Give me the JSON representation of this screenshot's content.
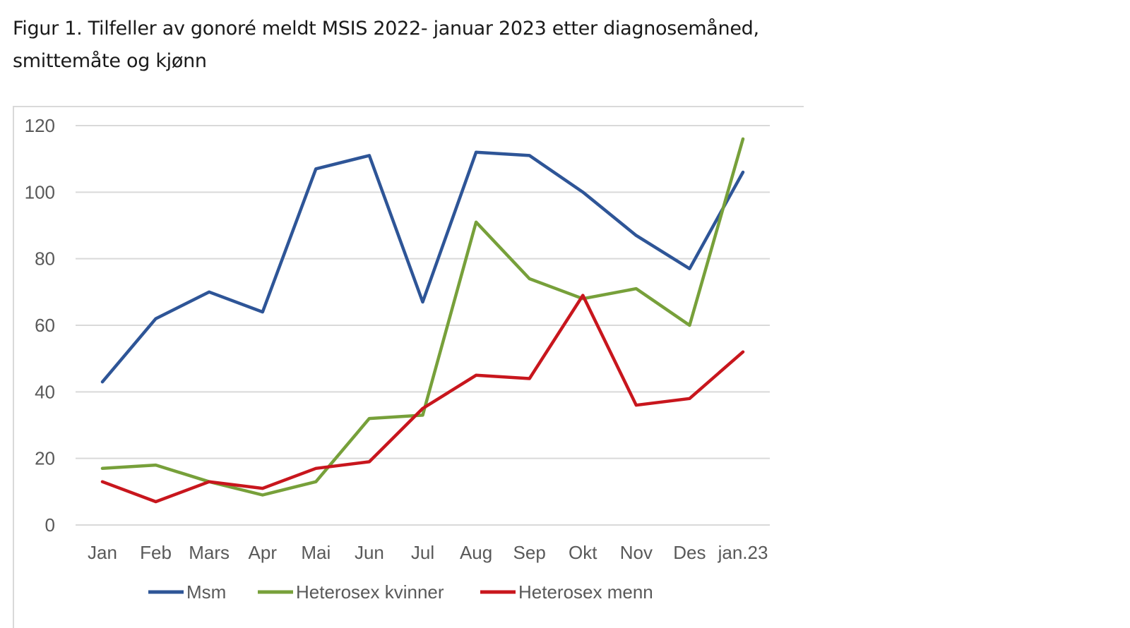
{
  "figure": {
    "title_line1": "Figur 1. Tilfeller av gonoré meldt MSIS 2022- januar 2023 etter diagnosemåned,",
    "title_line2": "smittemåte og kjønn"
  },
  "chart_data": {
    "type": "line",
    "categories": [
      "Jan",
      "Feb",
      "Mars",
      "Apr",
      "Mai",
      "Jun",
      "Jul",
      "Aug",
      "Sep",
      "Okt",
      "Nov",
      "Des",
      "jan.23"
    ],
    "ylim": [
      0,
      120
    ],
    "yticks": [
      0,
      20,
      40,
      60,
      80,
      100,
      120
    ],
    "grid": true,
    "legend_position": "bottom",
    "series": [
      {
        "name": "Msm",
        "color": "#2e5597",
        "values": [
          43,
          62,
          70,
          64,
          107,
          111,
          67,
          112,
          111,
          100,
          87,
          77,
          106
        ]
      },
      {
        "name": "Heterosex kvinner",
        "color": "#77a03a",
        "values": [
          17,
          18,
          13,
          9,
          13,
          32,
          33,
          91,
          74,
          68,
          71,
          60,
          116
        ]
      },
      {
        "name": "Heterosex menn",
        "color": "#c8161d",
        "values": [
          13,
          7,
          13,
          11,
          17,
          19,
          35,
          45,
          44,
          69,
          36,
          38,
          52
        ]
      }
    ]
  }
}
